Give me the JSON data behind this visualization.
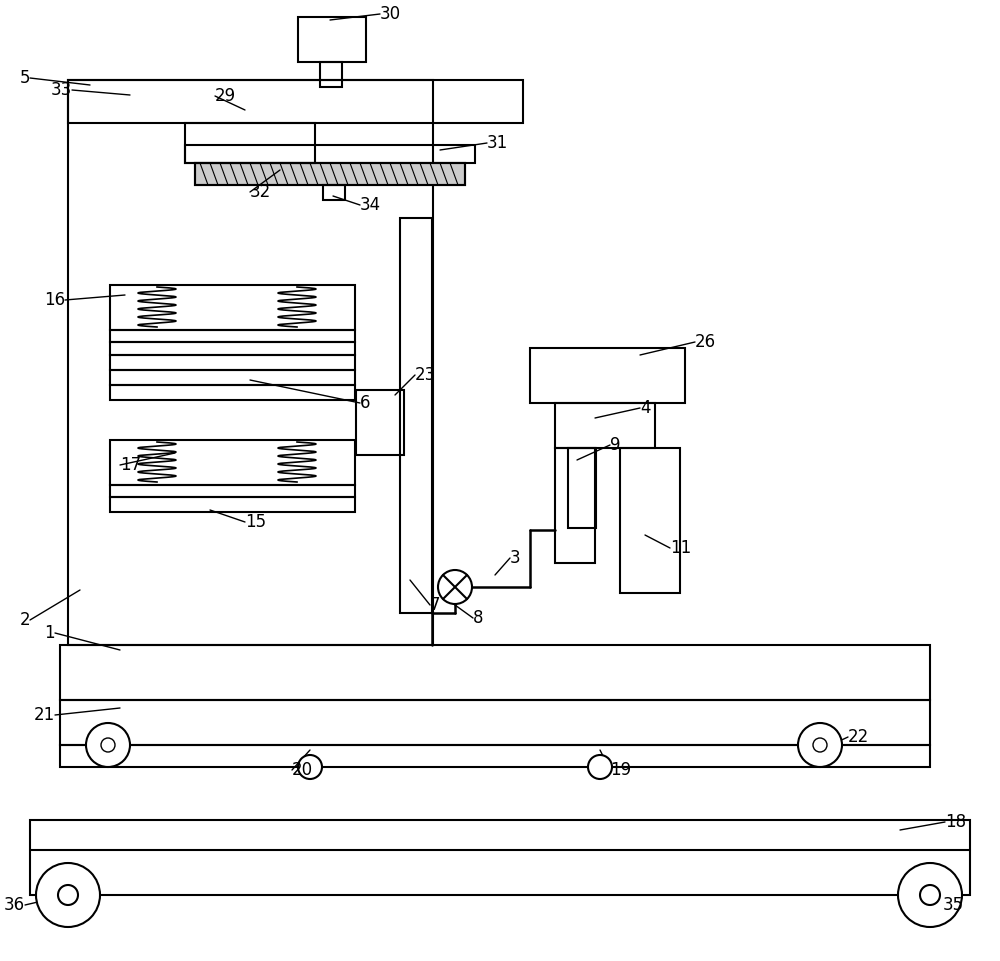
{
  "bg_color": "#ffffff",
  "lc": "#000000",
  "lw": 1.5,
  "fs": 12,
  "fig_w": 10.0,
  "fig_h": 9.61,
  "dpi": 100
}
